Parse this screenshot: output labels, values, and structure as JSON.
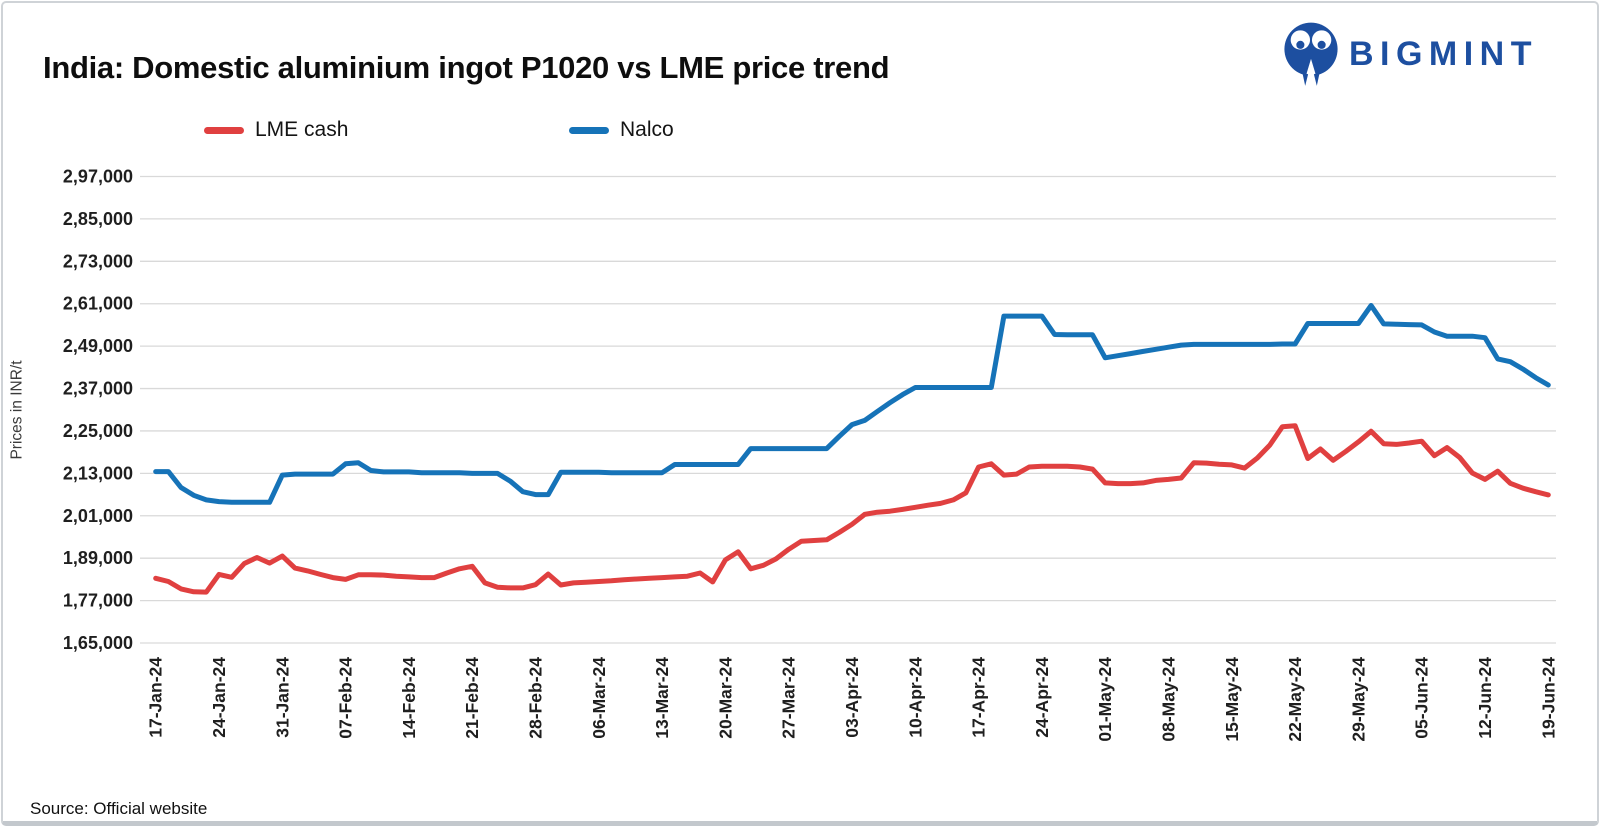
{
  "header": {
    "title": "India: Domestic aluminium ingot P1020 vs LME price trend",
    "logo": {
      "text": "BIGMINT",
      "color": "#1d4fa0"
    }
  },
  "legend": {
    "items": [
      {
        "label": "LME cash",
        "color": "#e04040"
      },
      {
        "label": "Nalco",
        "color": "#1673b8"
      }
    ]
  },
  "footer": {
    "source": "Source: Official website"
  },
  "colors": {
    "gridline": "#d9d9d9",
    "axis_text": "#1f1f1f",
    "axis_title_text": "#3a3a3a"
  },
  "chart_data": {
    "type": "line",
    "title": "India: Domestic aluminium ingot P1020 vs LME price trend",
    "xlabel": "",
    "ylabel": "Prices in INR/t",
    "ylim": [
      165000,
      297000
    ],
    "grid": "horizontal",
    "legend_position": "top-left",
    "n_points": 111,
    "points_per_tick": 5,
    "x_unit": "daily (weekday) points; axis labels weekly",
    "y_ticks": [
      165000,
      177000,
      189000,
      201000,
      213000,
      225000,
      237000,
      249000,
      261000,
      273000,
      285000,
      297000
    ],
    "y_tick_labels": [
      "1,65,000",
      "1,77,000",
      "1,89,000",
      "2,01,000",
      "2,13,000",
      "2,25,000",
      "2,37,000",
      "2,49,000",
      "2,61,000",
      "2,73,000",
      "2,85,000",
      "2,97,000"
    ],
    "x_tick_labels": [
      "17-Jan-24",
      "24-Jan-24",
      "31-Jan-24",
      "07-Feb-24",
      "14-Feb-24",
      "21-Feb-24",
      "28-Feb-24",
      "06-Mar-24",
      "13-Mar-24",
      "20-Mar-24",
      "27-Mar-24",
      "03-Apr-24",
      "10-Apr-24",
      "17-Apr-24",
      "24-Apr-24",
      "01-May-24",
      "08-May-24",
      "15-May-24",
      "22-May-24",
      "29-May-24",
      "05-Jun-24",
      "12-Jun-24",
      "19-Jun-24"
    ],
    "series": [
      {
        "name": "LME cash",
        "color": "#e04040",
        "values": [
          183300,
          182400,
          180300,
          179500,
          179400,
          184400,
          183600,
          187500,
          189200,
          187600,
          189600,
          186200,
          185400,
          184400,
          183500,
          183000,
          184300,
          184300,
          184200,
          183900,
          183700,
          183500,
          183500,
          184800,
          186000,
          186700,
          182000,
          180800,
          180600,
          180600,
          181500,
          184500,
          181400,
          182000,
          182200,
          182400,
          182600,
          182900,
          183100,
          183300,
          183500,
          183700,
          183900,
          184800,
          182300,
          188500,
          190800,
          186000,
          187000,
          188800,
          191500,
          193800,
          194000,
          194200,
          196300,
          198600,
          201400,
          202000,
          202300,
          202800,
          203400,
          204000,
          204500,
          205500,
          207500,
          214800,
          215700,
          212500,
          212800,
          214800,
          215000,
          215000,
          215000,
          214800,
          214200,
          210300,
          210100,
          210100,
          210300,
          211000,
          211300,
          211700,
          216000,
          215900,
          215600,
          215400,
          214500,
          217300,
          221000,
          226200,
          226500,
          217200,
          219900,
          216700,
          219200,
          221900,
          224900,
          221400,
          221200,
          221600,
          222100,
          218000,
          220300,
          217500,
          213100,
          211300,
          213600,
          210200,
          208800,
          207800,
          206900
        ]
      },
      {
        "name": "Nalco",
        "color": "#1673b8",
        "values": [
          213500,
          213500,
          209000,
          206800,
          205500,
          205000,
          204800,
          204800,
          204800,
          204800,
          212500,
          212800,
          212800,
          212800,
          212800,
          215700,
          216000,
          213800,
          213400,
          213400,
          213400,
          213200,
          213200,
          213200,
          213200,
          213000,
          213000,
          213000,
          210800,
          207800,
          207000,
          207000,
          213300,
          213300,
          213300,
          213300,
          213200,
          213200,
          213200,
          213200,
          213200,
          215500,
          215500,
          215500,
          215500,
          215500,
          215500,
          220000,
          220000,
          220000,
          220000,
          220000,
          220000,
          220000,
          223500,
          226800,
          228000,
          230500,
          233000,
          235300,
          237300,
          237300,
          237300,
          237300,
          237300,
          237300,
          237300,
          257500,
          257500,
          257500,
          257500,
          252300,
          252200,
          252200,
          252200,
          245700,
          246300,
          246900,
          247500,
          248100,
          248700,
          249300,
          249500,
          249500,
          249500,
          249500,
          249500,
          249500,
          249500,
          249600,
          249600,
          255400,
          255400,
          255400,
          255400,
          255400,
          260500,
          255300,
          255200,
          255100,
          255000,
          253000,
          251800,
          251800,
          251800,
          251400,
          245400,
          244600,
          242500,
          240100,
          238000
        ]
      }
    ]
  }
}
